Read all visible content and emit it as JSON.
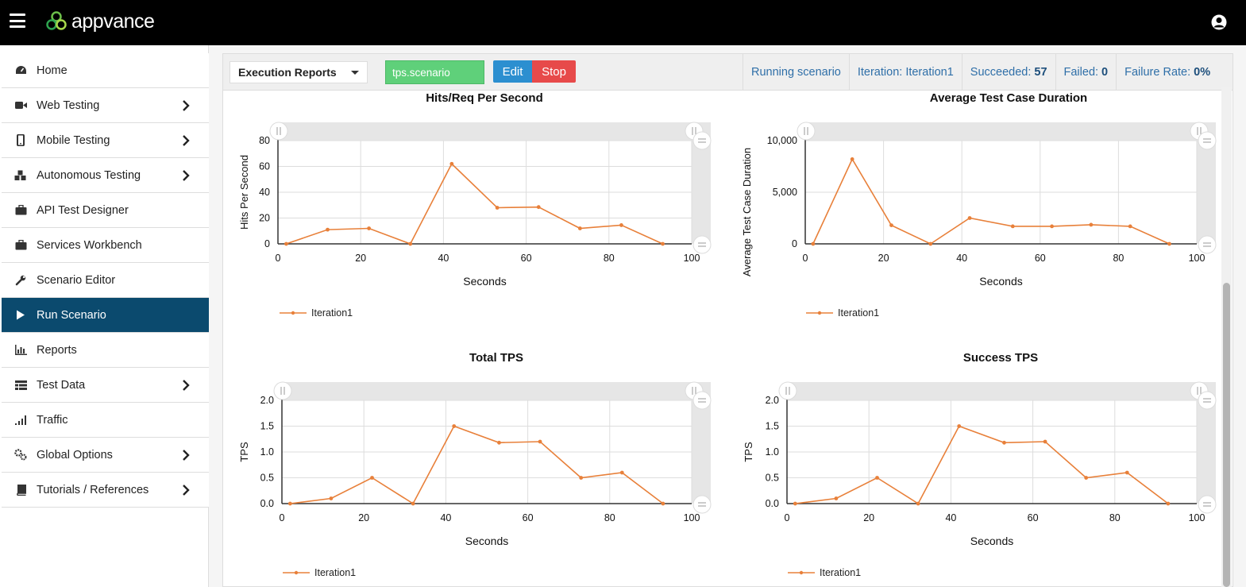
{
  "header": {
    "logo_text": "appvance",
    "menu_icon": "hamburger-icon",
    "user_icon": "user-circle-icon"
  },
  "sidebar": {
    "items": [
      {
        "label": "Home",
        "icon": "dashboard-icon",
        "has_children": false
      },
      {
        "label": "Web Testing",
        "icon": "video-camera-icon",
        "has_children": true
      },
      {
        "label": "Mobile Testing",
        "icon": "mobile-phone-icon",
        "has_children": true
      },
      {
        "label": "Autonomous Testing",
        "icon": "cubes-icon",
        "has_children": true
      },
      {
        "label": "API Test Designer",
        "icon": "briefcase-icon",
        "has_children": false
      },
      {
        "label": "Services Workbench",
        "icon": "briefcase-icon",
        "has_children": false
      },
      {
        "label": "Scenario Editor",
        "icon": "wrench-icon",
        "has_children": false
      },
      {
        "label": "Run Scenario",
        "icon": "play-icon",
        "has_children": false,
        "active": true
      },
      {
        "label": "Reports",
        "icon": "bar-chart-icon",
        "has_children": false
      },
      {
        "label": "Test Data",
        "icon": "table-icon",
        "has_children": true
      },
      {
        "label": "Traffic",
        "icon": "signal-icon",
        "has_children": false
      },
      {
        "label": "Global Options",
        "icon": "gears-icon",
        "has_children": true
      },
      {
        "label": "Tutorials / References",
        "icon": "book-icon",
        "has_children": true
      }
    ]
  },
  "toolbar": {
    "report_select": "Execution Reports",
    "scenario_value": "tps.scenario",
    "edit_label": "Edit",
    "stop_label": "Stop"
  },
  "status": {
    "running": "Running scenario",
    "iteration_label": "Iteration:",
    "iteration_value": "Iteration1",
    "succeeded_label": "Succeeded:",
    "succeeded_value": "57",
    "failed_label": "Failed:",
    "failed_value": "0",
    "failure_rate_label": "Failure Rate:",
    "failure_rate_value": "0%"
  },
  "colors": {
    "series": "#e8803a",
    "active_nav": "#0b4a6e",
    "status_text": "#2f6fa8"
  },
  "chart_data": [
    {
      "type": "line",
      "title": "Hits/Req Per Second",
      "xlabel": "Seconds",
      "ylabel": "Hits Per Second",
      "xlim": [
        0,
        100
      ],
      "ylim": [
        0,
        80
      ],
      "xticks": [
        0,
        20,
        40,
        60,
        80,
        100
      ],
      "yticks": [
        0,
        20,
        40,
        60,
        80
      ],
      "ytick_labels": [
        "0",
        "20",
        "40",
        "60",
        "80"
      ],
      "series": [
        {
          "name": "Iteration1",
          "x": [
            2,
            12,
            22,
            32,
            42,
            53,
            63,
            73,
            83,
            93
          ],
          "y": [
            0,
            11,
            12,
            0,
            62,
            28,
            28.5,
            12,
            14.5,
            0
          ]
        }
      ]
    },
    {
      "type": "line",
      "title": "Average Test Case Duration",
      "xlabel": "Seconds",
      "ylabel": "Average Test Case Duration",
      "xlim": [
        0,
        100
      ],
      "ylim": [
        0,
        10000
      ],
      "xticks": [
        0,
        20,
        40,
        60,
        80,
        100
      ],
      "yticks": [
        0,
        5000,
        10000
      ],
      "ytick_labels": [
        "0",
        "5,000",
        "10,000"
      ],
      "series": [
        {
          "name": "Iteration1",
          "x": [
            2,
            12,
            22,
            32,
            42,
            53,
            63,
            73,
            83,
            93
          ],
          "y": [
            0,
            8200,
            1800,
            0,
            2500,
            1700,
            1700,
            1850,
            1700,
            0
          ]
        }
      ]
    },
    {
      "type": "line",
      "title": "Total TPS",
      "xlabel": "Seconds",
      "ylabel": "TPS",
      "xlim": [
        0,
        100
      ],
      "ylim": [
        0,
        2
      ],
      "xticks": [
        0,
        20,
        40,
        60,
        80,
        100
      ],
      "yticks": [
        0,
        0.5,
        1,
        1.5,
        2
      ],
      "ytick_labels": [
        "0.0",
        "0.5",
        "1.0",
        "1.5",
        "2.0"
      ],
      "series": [
        {
          "name": "Iteration1",
          "x": [
            2,
            12,
            22,
            32,
            42,
            53,
            63,
            73,
            83,
            93
          ],
          "y": [
            0,
            0.1,
            0.5,
            0,
            1.5,
            1.18,
            1.2,
            0.5,
            0.6,
            0
          ]
        }
      ]
    },
    {
      "type": "line",
      "title": "Success TPS",
      "xlabel": "Seconds",
      "ylabel": "TPS",
      "xlim": [
        0,
        100
      ],
      "ylim": [
        0,
        2
      ],
      "xticks": [
        0,
        20,
        40,
        60,
        80,
        100
      ],
      "yticks": [
        0,
        0.5,
        1,
        1.5,
        2
      ],
      "ytick_labels": [
        "0.0",
        "0.5",
        "1.0",
        "1.5",
        "2.0"
      ],
      "series": [
        {
          "name": "Iteration1",
          "x": [
            2,
            12,
            22,
            32,
            42,
            53,
            63,
            73,
            83,
            93
          ],
          "y": [
            0,
            0.1,
            0.5,
            0,
            1.5,
            1.18,
            1.2,
            0.5,
            0.6,
            0
          ]
        }
      ]
    }
  ]
}
